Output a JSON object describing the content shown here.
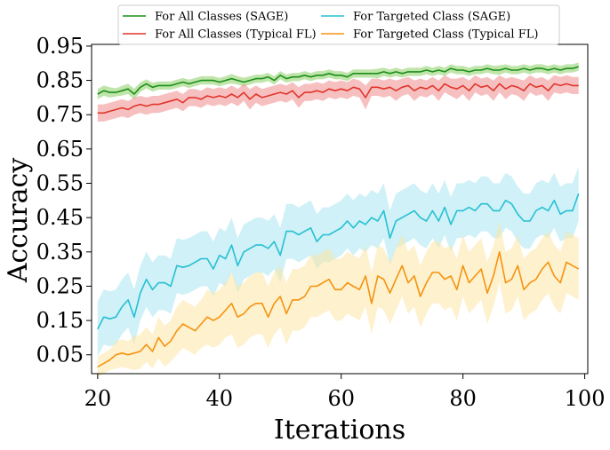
{
  "chart_data": {
    "type": "line",
    "xlabel": "Iterations",
    "ylabel": "Accuracy",
    "xlim": [
      19,
      100.5
    ],
    "ylim": [
      -0.005,
      0.955
    ],
    "xticks": [
      20,
      40,
      60,
      80,
      100
    ],
    "yticks": [
      0.05,
      0.15,
      0.25,
      0.35,
      0.45,
      0.55,
      0.65,
      0.75,
      0.85,
      0.95
    ],
    "ytick_labels": [
      "0.05",
      "0.15",
      "0.25",
      "0.35",
      "0.45",
      "0.55",
      "0.65",
      "0.75",
      "0.85",
      "0.95"
    ],
    "grid": false,
    "legend_position": "top-center",
    "shaded_band": "variation band around each series",
    "x": [
      20,
      21,
      22,
      23,
      24,
      25,
      26,
      27,
      28,
      29,
      30,
      31,
      32,
      33,
      34,
      35,
      36,
      37,
      38,
      39,
      40,
      41,
      42,
      43,
      44,
      45,
      46,
      47,
      48,
      49,
      50,
      51,
      52,
      53,
      54,
      55,
      56,
      57,
      58,
      59,
      60,
      61,
      62,
      63,
      64,
      65,
      66,
      67,
      68,
      69,
      70,
      71,
      72,
      73,
      74,
      75,
      76,
      77,
      78,
      79,
      80,
      81,
      82,
      83,
      84,
      85,
      86,
      87,
      88,
      89,
      90,
      91,
      92,
      93,
      94,
      95,
      96,
      97,
      98,
      99
    ],
    "series": [
      {
        "name": "For All Classes (SAGE)",
        "color": "#1a8f1a",
        "band_color": "#8ccf66",
        "values": [
          0.81,
          0.82,
          0.815,
          0.815,
          0.82,
          0.825,
          0.81,
          0.83,
          0.84,
          0.83,
          0.835,
          0.835,
          0.835,
          0.84,
          0.845,
          0.84,
          0.845,
          0.85,
          0.85,
          0.85,
          0.845,
          0.85,
          0.855,
          0.85,
          0.845,
          0.85,
          0.855,
          0.855,
          0.86,
          0.85,
          0.865,
          0.855,
          0.86,
          0.86,
          0.865,
          0.86,
          0.865,
          0.865,
          0.87,
          0.865,
          0.865,
          0.86,
          0.87,
          0.87,
          0.87,
          0.87,
          0.87,
          0.875,
          0.87,
          0.875,
          0.87,
          0.875,
          0.875,
          0.875,
          0.88,
          0.875,
          0.88,
          0.875,
          0.885,
          0.88,
          0.88,
          0.875,
          0.88,
          0.88,
          0.885,
          0.88,
          0.88,
          0.885,
          0.88,
          0.88,
          0.885,
          0.88,
          0.885,
          0.885,
          0.88,
          0.885,
          0.88,
          0.885,
          0.885,
          0.89
        ],
        "band": [
          0.015,
          0.015,
          0.015,
          0.012,
          0.014,
          0.015,
          0.016,
          0.014,
          0.013,
          0.013,
          0.012,
          0.012,
          0.012,
          0.012,
          0.012,
          0.012,
          0.012,
          0.012,
          0.012,
          0.012,
          0.012,
          0.012,
          0.014,
          0.012,
          0.013,
          0.012,
          0.012,
          0.012,
          0.012,
          0.012,
          0.012,
          0.012,
          0.012,
          0.012,
          0.012,
          0.012,
          0.012,
          0.012,
          0.012,
          0.012,
          0.012,
          0.012,
          0.012,
          0.012,
          0.012,
          0.012,
          0.014,
          0.012,
          0.012,
          0.012,
          0.012,
          0.012,
          0.012,
          0.012,
          0.012,
          0.012,
          0.012,
          0.012,
          0.012,
          0.012,
          0.012,
          0.012,
          0.012,
          0.012,
          0.012,
          0.012,
          0.014,
          0.012,
          0.012,
          0.012,
          0.012,
          0.012,
          0.012,
          0.012,
          0.012,
          0.012,
          0.012,
          0.012,
          0.012,
          0.012
        ]
      },
      {
        "name": "For All Classes (Typical FL)",
        "color": "#e0352b",
        "band_color": "#f08c8c",
        "values": [
          0.755,
          0.755,
          0.76,
          0.765,
          0.77,
          0.765,
          0.775,
          0.78,
          0.775,
          0.78,
          0.78,
          0.785,
          0.79,
          0.795,
          0.785,
          0.8,
          0.8,
          0.795,
          0.805,
          0.8,
          0.805,
          0.8,
          0.81,
          0.8,
          0.815,
          0.795,
          0.81,
          0.8,
          0.805,
          0.81,
          0.815,
          0.81,
          0.82,
          0.8,
          0.815,
          0.815,
          0.82,
          0.815,
          0.825,
          0.82,
          0.825,
          0.82,
          0.83,
          0.825,
          0.8,
          0.83,
          0.83,
          0.825,
          0.83,
          0.82,
          0.83,
          0.835,
          0.82,
          0.83,
          0.825,
          0.835,
          0.82,
          0.84,
          0.83,
          0.825,
          0.835,
          0.82,
          0.84,
          0.83,
          0.835,
          0.82,
          0.84,
          0.825,
          0.835,
          0.83,
          0.82,
          0.84,
          0.83,
          0.835,
          0.82,
          0.84,
          0.835,
          0.84,
          0.835,
          0.835
        ],
        "band": [
          0.025,
          0.025,
          0.025,
          0.025,
          0.025,
          0.025,
          0.025,
          0.025,
          0.025,
          0.025,
          0.025,
          0.025,
          0.025,
          0.025,
          0.025,
          0.025,
          0.025,
          0.025,
          0.025,
          0.025,
          0.025,
          0.025,
          0.025,
          0.025,
          0.025,
          0.03,
          0.025,
          0.025,
          0.025,
          0.025,
          0.025,
          0.025,
          0.025,
          0.03,
          0.025,
          0.025,
          0.025,
          0.025,
          0.025,
          0.025,
          0.025,
          0.025,
          0.025,
          0.025,
          0.035,
          0.025,
          0.025,
          0.025,
          0.025,
          0.03,
          0.025,
          0.025,
          0.03,
          0.025,
          0.025,
          0.025,
          0.03,
          0.025,
          0.025,
          0.03,
          0.025,
          0.03,
          0.025,
          0.025,
          0.025,
          0.03,
          0.025,
          0.03,
          0.025,
          0.025,
          0.03,
          0.025,
          0.025,
          0.025,
          0.03,
          0.025,
          0.025,
          0.025,
          0.025,
          0.025
        ]
      },
      {
        "name": "For Targeted Class (SAGE)",
        "color": "#26c0d3",
        "band_color": "#a7e5f0",
        "values": [
          0.125,
          0.16,
          0.155,
          0.16,
          0.19,
          0.21,
          0.16,
          0.23,
          0.27,
          0.24,
          0.26,
          0.26,
          0.25,
          0.31,
          0.305,
          0.31,
          0.32,
          0.33,
          0.33,
          0.3,
          0.34,
          0.33,
          0.37,
          0.31,
          0.35,
          0.36,
          0.37,
          0.37,
          0.36,
          0.38,
          0.34,
          0.41,
          0.41,
          0.4,
          0.41,
          0.42,
          0.38,
          0.4,
          0.4,
          0.41,
          0.42,
          0.44,
          0.42,
          0.44,
          0.43,
          0.45,
          0.44,
          0.47,
          0.39,
          0.44,
          0.45,
          0.46,
          0.47,
          0.45,
          0.44,
          0.47,
          0.44,
          0.48,
          0.43,
          0.47,
          0.47,
          0.48,
          0.47,
          0.49,
          0.49,
          0.47,
          0.47,
          0.5,
          0.49,
          0.46,
          0.44,
          0.44,
          0.47,
          0.48,
          0.47,
          0.5,
          0.46,
          0.47,
          0.47,
          0.52
        ],
        "band": [
          0.08,
          0.08,
          0.08,
          0.08,
          0.08,
          0.08,
          0.08,
          0.08,
          0.08,
          0.08,
          0.08,
          0.08,
          0.08,
          0.08,
          0.08,
          0.08,
          0.08,
          0.08,
          0.08,
          0.08,
          0.08,
          0.08,
          0.08,
          0.08,
          0.08,
          0.08,
          0.08,
          0.08,
          0.08,
          0.08,
          0.08,
          0.08,
          0.08,
          0.08,
          0.08,
          0.08,
          0.08,
          0.08,
          0.08,
          0.08,
          0.08,
          0.08,
          0.08,
          0.08,
          0.08,
          0.08,
          0.08,
          0.08,
          0.08,
          0.08,
          0.08,
          0.08,
          0.08,
          0.08,
          0.08,
          0.08,
          0.08,
          0.08,
          0.08,
          0.08,
          0.08,
          0.08,
          0.08,
          0.08,
          0.08,
          0.08,
          0.08,
          0.08,
          0.08,
          0.08,
          0.08,
          0.08,
          0.08,
          0.08,
          0.08,
          0.08,
          0.08,
          0.08,
          0.08,
          0.08
        ]
      },
      {
        "name": "For Targeted Class (Typical FL)",
        "color": "#f5930f",
        "band_color": "#fde6a6",
        "values": [
          0.015,
          0.025,
          0.035,
          0.05,
          0.055,
          0.05,
          0.055,
          0.06,
          0.08,
          0.06,
          0.1,
          0.075,
          0.09,
          0.12,
          0.14,
          0.13,
          0.12,
          0.14,
          0.16,
          0.15,
          0.16,
          0.18,
          0.2,
          0.16,
          0.17,
          0.19,
          0.2,
          0.2,
          0.16,
          0.2,
          0.22,
          0.17,
          0.21,
          0.21,
          0.22,
          0.25,
          0.25,
          0.26,
          0.27,
          0.24,
          0.24,
          0.26,
          0.25,
          0.24,
          0.28,
          0.2,
          0.28,
          0.27,
          0.23,
          0.27,
          0.31,
          0.26,
          0.28,
          0.22,
          0.26,
          0.29,
          0.29,
          0.27,
          0.28,
          0.24,
          0.31,
          0.26,
          0.28,
          0.3,
          0.23,
          0.28,
          0.35,
          0.26,
          0.27,
          0.31,
          0.24,
          0.26,
          0.27,
          0.3,
          0.32,
          0.28,
          0.26,
          0.32,
          0.31,
          0.3
        ],
        "band": [
          0.03,
          0.03,
          0.03,
          0.04,
          0.04,
          0.04,
          0.05,
          0.05,
          0.05,
          0.05,
          0.06,
          0.06,
          0.06,
          0.07,
          0.07,
          0.07,
          0.07,
          0.07,
          0.08,
          0.08,
          0.08,
          0.08,
          0.09,
          0.09,
          0.09,
          0.09,
          0.09,
          0.09,
          0.09,
          0.09,
          0.09,
          0.09,
          0.09,
          0.09,
          0.09,
          0.09,
          0.09,
          0.09,
          0.09,
          0.09,
          0.09,
          0.09,
          0.09,
          0.09,
          0.09,
          0.09,
          0.09,
          0.09,
          0.09,
          0.09,
          0.09,
          0.09,
          0.09,
          0.09,
          0.09,
          0.09,
          0.09,
          0.09,
          0.09,
          0.09,
          0.09,
          0.09,
          0.09,
          0.09,
          0.09,
          0.09,
          0.09,
          0.09,
          0.09,
          0.09,
          0.09,
          0.09,
          0.09,
          0.09,
          0.09,
          0.09,
          0.09,
          0.09,
          0.09,
          0.09
        ]
      }
    ]
  }
}
